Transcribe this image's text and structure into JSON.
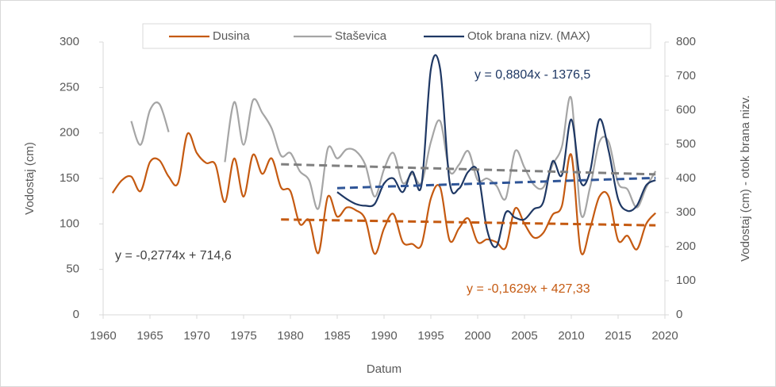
{
  "chart_data": {
    "type": "line",
    "xlabel": "Datum",
    "ylabel": "Vodostaj (cm)",
    "y2label": "Vodostaj (cm) - otok brana nizv.",
    "x": [
      1961,
      1962,
      1963,
      1964,
      1965,
      1966,
      1967,
      1968,
      1969,
      1970,
      1971,
      1972,
      1973,
      1974,
      1975,
      1976,
      1977,
      1978,
      1979,
      1980,
      1981,
      1982,
      1983,
      1984,
      1985,
      1986,
      1987,
      1988,
      1989,
      1990,
      1991,
      1992,
      1993,
      1994,
      1995,
      1996,
      1997,
      1998,
      1999,
      2000,
      2001,
      2002,
      2003,
      2004,
      2005,
      2006,
      2007,
      2008,
      2009,
      2010,
      2011,
      2012,
      2013,
      2014,
      2015,
      2016,
      2017,
      2018,
      2019
    ],
    "series": [
      {
        "name": "Dusina",
        "color": "#c55a11",
        "values": [
          134,
          148,
          152,
          136,
          168,
          170,
          152,
          145,
          199,
          178,
          167,
          165,
          124,
          172,
          130,
          176,
          155,
          172,
          140,
          136,
          100,
          104,
          68,
          130,
          108,
          118,
          115,
          105,
          67,
          95,
          111,
          80,
          78,
          77,
          128,
          140,
          82,
          95,
          106,
          80,
          83,
          80,
          74,
          117,
          100,
          85,
          90,
          110,
          120,
          176,
          70,
          95,
          130,
          130,
          82,
          87,
          72,
          100,
          112
        ]
      },
      {
        "name": "Staševica",
        "color": "#a5a5a5",
        "values": [
          null,
          null,
          213,
          187,
          225,
          232,
          201,
          null,
          null,
          null,
          null,
          null,
          168,
          234,
          187,
          236,
          222,
          205,
          175,
          178,
          158,
          148,
          117,
          183,
          172,
          182,
          180,
          165,
          130,
          160,
          178,
          145,
          155,
          145,
          190,
          213,
          158,
          165,
          180,
          148,
          150,
          142,
          128,
          180,
          162,
          143,
          140,
          165,
          185,
          238,
          112,
          140,
          190,
          190,
          145,
          138,
          118,
          140,
          158
        ]
      },
      {
        "name": "Otok brana nizv. (MAX)",
        "color": "#1f3864",
        "axis": "y2",
        "values": [
          null,
          null,
          null,
          null,
          null,
          null,
          null,
          null,
          null,
          null,
          null,
          null,
          null,
          null,
          null,
          null,
          null,
          null,
          null,
          null,
          null,
          null,
          null,
          null,
          360,
          340,
          325,
          320,
          325,
          385,
          400,
          360,
          420,
          380,
          720,
          720,
          390,
          370,
          420,
          420,
          250,
          200,
          300,
          285,
          280,
          310,
          330,
          450,
          410,
          573,
          390,
          420,
          573,
          480,
          340,
          305,
          320,
          380,
          395
        ]
      }
    ],
    "trendlines": [
      {
        "color": "#c55a11",
        "x": [
          1979,
          2019
        ],
        "values": [
          104.9,
          98.4
        ]
      },
      {
        "color": "#7f7f7f",
        "x": [
          1979,
          2019
        ],
        "values": [
          165.6,
          154.5
        ]
      },
      {
        "color": "#2f5597",
        "axis": "y2",
        "x": [
          1985,
          2019
        ],
        "values": [
          371.6,
          401.5
        ]
      }
    ],
    "annotations": [
      {
        "text": "y = 0,8804x - 1376,5",
        "color": "#1f3864"
      },
      {
        "text": "y = -0,2774x + 714,6",
        "color": "#404040"
      },
      {
        "text": "y = -0,1629x + 427,33",
        "color": "#c55a11"
      }
    ],
    "xlim": [
      1960,
      2020
    ],
    "xticks": [
      1960,
      1965,
      1970,
      1975,
      1980,
      1985,
      1990,
      1995,
      2000,
      2005,
      2010,
      2015,
      2020
    ],
    "ylim": [
      0,
      300
    ],
    "yticks": [
      0,
      50,
      100,
      150,
      200,
      250,
      300
    ],
    "y2lim": [
      0,
      800
    ],
    "y2ticks": [
      0,
      100,
      200,
      300,
      400,
      500,
      600,
      700,
      800
    ],
    "legend": "top"
  }
}
